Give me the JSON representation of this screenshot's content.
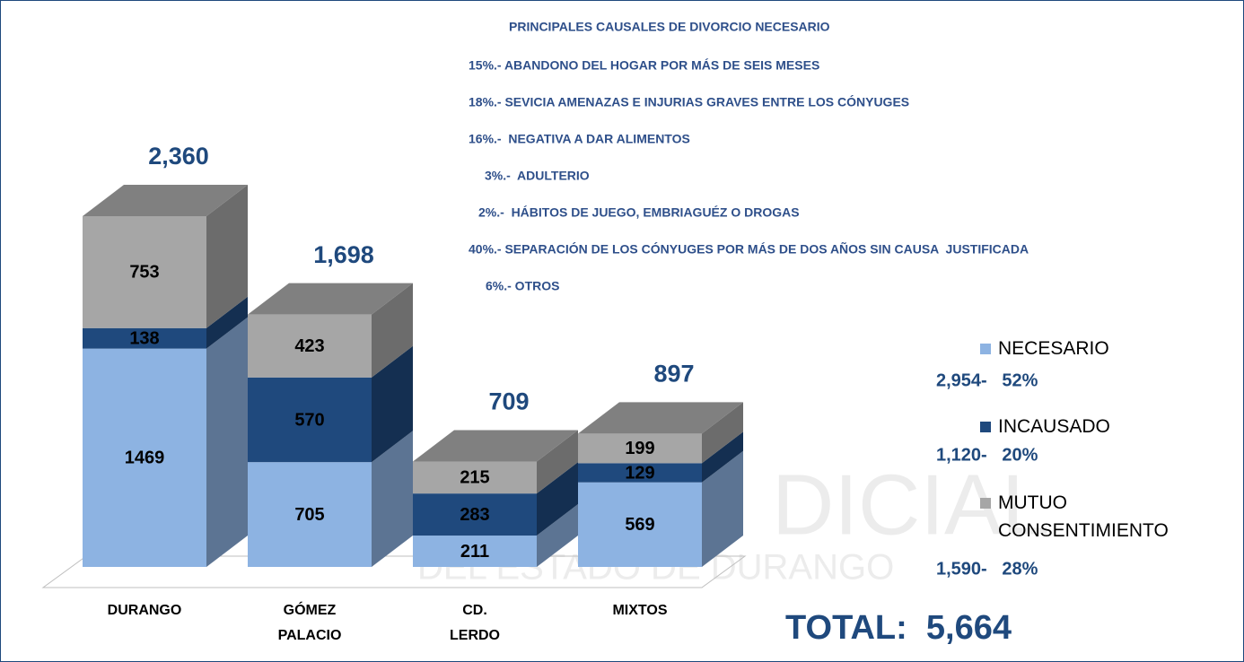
{
  "chart_data": {
    "type": "bar",
    "stacked": true,
    "categories": [
      "DURANGO",
      "GÓMEZ PALACIO",
      "CD. LERDO",
      "MIXTOS"
    ],
    "series": [
      {
        "name": "NECESARIO",
        "color": "#8db3e2",
        "values": [
          1469,
          705,
          211,
          569
        ]
      },
      {
        "name": "INCAUSADO",
        "color": "#1f497d",
        "values": [
          138,
          570,
          283,
          129
        ]
      },
      {
        "name": "MUTUO CONSENTIMIENTO",
        "color": "#a6a6a6",
        "values": [
          753,
          423,
          215,
          199
        ]
      }
    ],
    "totals": [
      "2,360",
      "1,698",
      "709",
      "897"
    ],
    "legend_notes": [
      "2,954-   52%",
      "1,120-   20%",
      "1,590-   28%"
    ],
    "notes_title": "PRINCIPALES CAUSALES DE DIVORCIO NECESARIO",
    "notes": [
      "15%.- ABANDONO DEL HOGAR POR MÁS DE SEIS MESES",
      "18%.- SEVICIA AMENAZAS E INJURIAS GRAVES ENTRE LOS CÓNYUGES",
      "16%.-  NEGATIVA A DAR ALIMENTOS",
      "3%.-  ADULTERIO",
      "2%.-  HÁBITOS DE JUEGO, EMBRIAGUÉZ O DROGAS",
      "40%.- SEPARACIÓN DE LOS CÓNYUGES POR MÁS DE DOS AÑOS SIN CAUSA  JUSTIFICADA",
      "6%.- OTROS"
    ],
    "grand_total": "TOTAL:  5,664",
    "watermark": [
      "DICIAL",
      "DEL ESTADO DE DURANGO"
    ]
  }
}
